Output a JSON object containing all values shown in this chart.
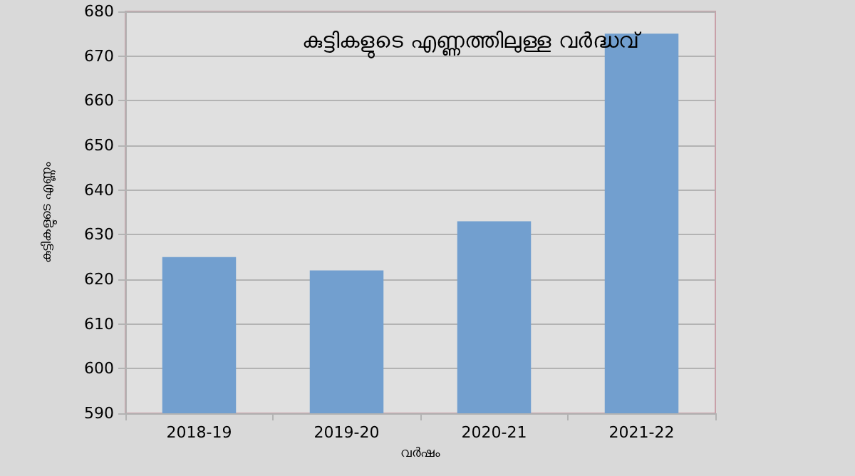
{
  "chart_data": {
    "type": "bar",
    "title": "കുട്ടികളുടെ എണ്ണത്തിലുള്ള വർദ്ധവ്",
    "xlabel": "വർഷം",
    "ylabel": "കുട്ടികളുടെ എണ്ണം",
    "categories": [
      "2018-19",
      "2019-20",
      "2020-21",
      "2021-22"
    ],
    "values": [
      625,
      622,
      633,
      675
    ],
    "color": "#729fcf",
    "ylim": [
      590,
      680
    ],
    "yticks": [
      590,
      600,
      610,
      620,
      630,
      640,
      650,
      660,
      670,
      680
    ],
    "grid": "y"
  }
}
